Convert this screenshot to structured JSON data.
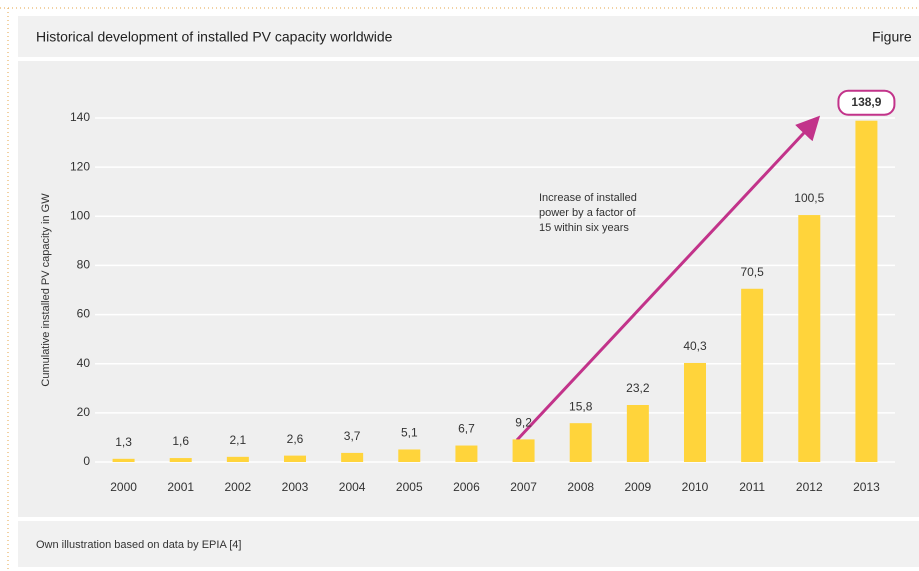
{
  "chart_data": {
    "type": "bar",
    "title": "Historical development of installed PV capacity worldwide",
    "figure_label": "Figure",
    "ylabel": "Cumulative installed PV capacity in GW",
    "annotation": [
      "Increase of installed",
      "power by a factor of",
      "15 within six years"
    ],
    "source": "Own illustration based on data by EPIA [4]",
    "categories": [
      "2000",
      "2001",
      "2002",
      "2003",
      "2004",
      "2005",
      "2006",
      "2007",
      "2008",
      "2009",
      "2010",
      "2011",
      "2012",
      "2013"
    ],
    "values": [
      1.3,
      1.6,
      2.1,
      2.6,
      3.7,
      5.1,
      6.7,
      9.2,
      15.8,
      23.2,
      40.3,
      70.5,
      100.5,
      138.9
    ],
    "value_labels": [
      "1,3",
      "1,6",
      "2,1",
      "2,6",
      "3,7",
      "5,1",
      "6,7",
      "9,2",
      "15,8",
      "23,2",
      "40,3",
      "70,5",
      "100,5",
      "138,9"
    ],
    "color": "#ffd43b",
    "ylim": [
      0,
      140
    ],
    "yticks": [
      0,
      20,
      40,
      60,
      80,
      100,
      120,
      140
    ],
    "grid": true
  }
}
